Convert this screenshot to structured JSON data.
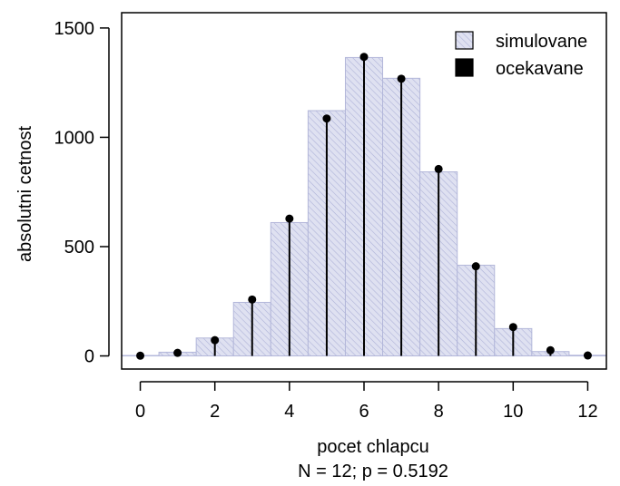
{
  "chart_data": {
    "type": "bar",
    "xlabel": "pocet chlapcu",
    "subtitle": "N = 12; p = 0.5192",
    "ylabel": "absolutni cetnost",
    "xlim": [
      -0.5,
      12.5
    ],
    "ylim": [
      -60,
      1570
    ],
    "x_ticks": [
      0,
      2,
      4,
      6,
      8,
      10,
      12
    ],
    "y_ticks": [
      0,
      500,
      1000,
      1500
    ],
    "legend_position": "top-right",
    "grid": false,
    "categories": [
      0,
      1,
      2,
      3,
      4,
      5,
      6,
      7,
      8,
      9,
      10,
      11,
      12
    ],
    "series": [
      {
        "name": "simulovane",
        "style": "hatched-bars",
        "color": "#b5b9dc",
        "values": [
          2,
          17,
          82,
          245,
          610,
          1122,
          1365,
          1270,
          842,
          415,
          125,
          20,
          3
        ]
      },
      {
        "name": "ocekavane",
        "style": "lollipop",
        "color": "#000000",
        "values": [
          1,
          14,
          72,
          258,
          628,
          1086,
          1368,
          1268,
          855,
          410,
          132,
          26,
          2
        ]
      }
    ]
  }
}
